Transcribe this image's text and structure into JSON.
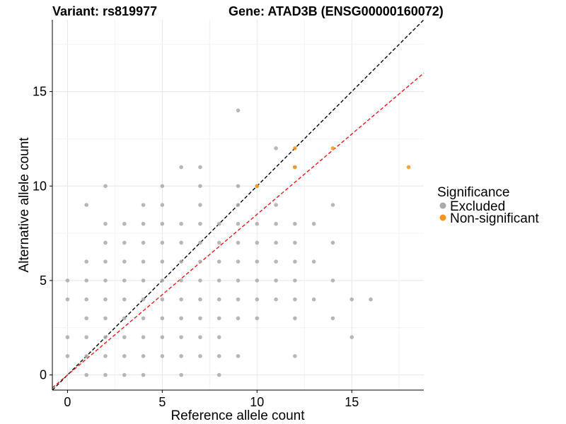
{
  "chart_data": {
    "type": "scatter",
    "title_left": "Variant: rs819977",
    "title_right": "Gene: ATAD3B (ENSG00000160072)",
    "xlabel": "Reference allele count",
    "ylabel": "Alternative allele count",
    "xlim": [
      -0.8,
      18.8
    ],
    "ylim": [
      -0.8,
      18.8
    ],
    "x_ticks": [
      0,
      5,
      10,
      15
    ],
    "y_ticks": [
      0,
      5,
      10,
      15
    ],
    "grid": true,
    "legend": {
      "title": "Significance",
      "position": "right",
      "entries": [
        {
          "label": "Excluded",
          "color": "#aaaaaa"
        },
        {
          "label": "Non-significant",
          "color": "#f7941d"
        }
      ]
    },
    "reference_lines": [
      {
        "name": "identity",
        "slope": 1.0,
        "intercept": 0,
        "color": "#000000",
        "dash": "dashed"
      },
      {
        "name": "fit",
        "slope": 0.85,
        "intercept": 0,
        "color": "#e41a1c",
        "dash": "dashed"
      }
    ],
    "series": [
      {
        "name": "Excluded",
        "color": "#aaaaaa",
        "points": [
          [
            1,
            0
          ],
          [
            2,
            0
          ],
          [
            3,
            0
          ],
          [
            4,
            0
          ],
          [
            6,
            0
          ],
          [
            8,
            0
          ],
          [
            0,
            1
          ],
          [
            1,
            1
          ],
          [
            2,
            1
          ],
          [
            3,
            1
          ],
          [
            4,
            1
          ],
          [
            5,
            1
          ],
          [
            6,
            1
          ],
          [
            7,
            1
          ],
          [
            8,
            1
          ],
          [
            9,
            1
          ],
          [
            12,
            1
          ],
          [
            0,
            2
          ],
          [
            1,
            2
          ],
          [
            2,
            2
          ],
          [
            3,
            2
          ],
          [
            4,
            2
          ],
          [
            5,
            2
          ],
          [
            6,
            2
          ],
          [
            7,
            2
          ],
          [
            8,
            2
          ],
          [
            15,
            2
          ],
          [
            1,
            3
          ],
          [
            2,
            3
          ],
          [
            3,
            3
          ],
          [
            4,
            3
          ],
          [
            5,
            3
          ],
          [
            6,
            3
          ],
          [
            7,
            3
          ],
          [
            8,
            3
          ],
          [
            9,
            3
          ],
          [
            10,
            3
          ],
          [
            12,
            3
          ],
          [
            14,
            3
          ],
          [
            0,
            4
          ],
          [
            1,
            4
          ],
          [
            2,
            4
          ],
          [
            3,
            4
          ],
          [
            4,
            4
          ],
          [
            5,
            4
          ],
          [
            6,
            4
          ],
          [
            7,
            4
          ],
          [
            8,
            4
          ],
          [
            9,
            4
          ],
          [
            10,
            4
          ],
          [
            11,
            4
          ],
          [
            12,
            4
          ],
          [
            13,
            4
          ],
          [
            15,
            4
          ],
          [
            16,
            4
          ],
          [
            0,
            5
          ],
          [
            1,
            5
          ],
          [
            2,
            5
          ],
          [
            3,
            5
          ],
          [
            4,
            5
          ],
          [
            5,
            5
          ],
          [
            6,
            5
          ],
          [
            7,
            5
          ],
          [
            8,
            5
          ],
          [
            9,
            5
          ],
          [
            10,
            5
          ],
          [
            11,
            5
          ],
          [
            12,
            5
          ],
          [
            14,
            5
          ],
          [
            1,
            6
          ],
          [
            2,
            6
          ],
          [
            3,
            6
          ],
          [
            4,
            6
          ],
          [
            5,
            6
          ],
          [
            6,
            6
          ],
          [
            7,
            6
          ],
          [
            8,
            6
          ],
          [
            9,
            6
          ],
          [
            10,
            6
          ],
          [
            11,
            6
          ],
          [
            12,
            6
          ],
          [
            13,
            6
          ],
          [
            2,
            7
          ],
          [
            3,
            7
          ],
          [
            4,
            7
          ],
          [
            5,
            7
          ],
          [
            6,
            7
          ],
          [
            7,
            7
          ],
          [
            8,
            7
          ],
          [
            9,
            7
          ],
          [
            10,
            7
          ],
          [
            11,
            7
          ],
          [
            12,
            7
          ],
          [
            14,
            7
          ],
          [
            2,
            8
          ],
          [
            3,
            8
          ],
          [
            4,
            8
          ],
          [
            5,
            8
          ],
          [
            6,
            8
          ],
          [
            7,
            8
          ],
          [
            8,
            8
          ],
          [
            9,
            8
          ],
          [
            10,
            8
          ],
          [
            11,
            8
          ],
          [
            12,
            8
          ],
          [
            13,
            8
          ],
          [
            1,
            9
          ],
          [
            4,
            9
          ],
          [
            5,
            9
          ],
          [
            7,
            9
          ],
          [
            9,
            9
          ],
          [
            11,
            9
          ],
          [
            14,
            9
          ],
          [
            2,
            10
          ],
          [
            5,
            10
          ],
          [
            7,
            10
          ],
          [
            9,
            10
          ],
          [
            10,
            10
          ],
          [
            6,
            11
          ],
          [
            7,
            11
          ],
          [
            12,
            11
          ],
          [
            11,
            12
          ],
          [
            9,
            14
          ]
        ]
      },
      {
        "name": "Non-significant",
        "color": "#f7941d",
        "points": [
          [
            10,
            10
          ],
          [
            12,
            11
          ],
          [
            12,
            12
          ],
          [
            14,
            12
          ],
          [
            18,
            11
          ]
        ]
      }
    ]
  }
}
